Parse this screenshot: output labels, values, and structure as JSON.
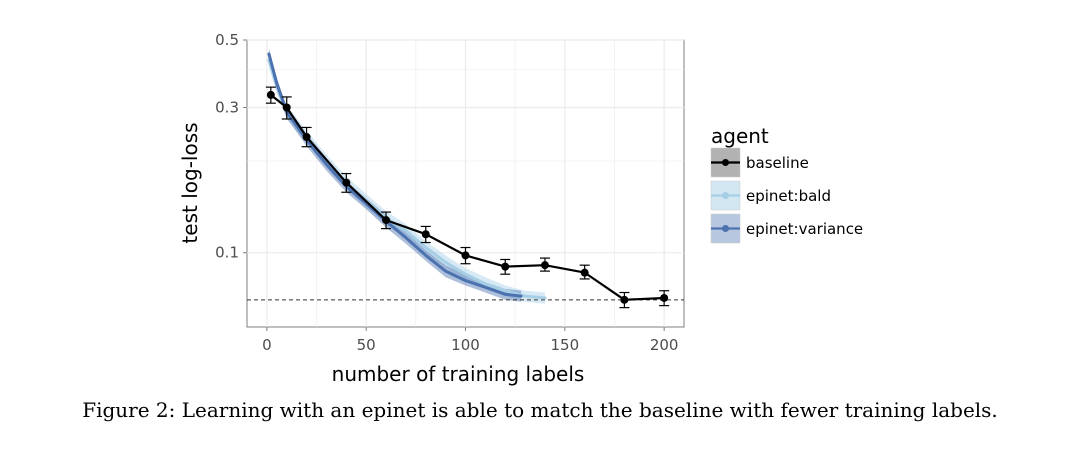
{
  "caption": "Figure 2: Learning with an epinet is able to match the baseline with fewer training labels.",
  "colors": {
    "baseline": "#000000",
    "bald": "#a6cfe6",
    "variance": "#4c72b0",
    "band_baseline": "#7f7f7f",
    "grid": "#ebebeb",
    "reference_line": "#333333"
  },
  "chart_data": {
    "type": "line",
    "xlabel": "number of training labels",
    "ylabel": "test log-loss",
    "xlim": [
      -10,
      210
    ],
    "ylim": [
      0.057,
      0.5
    ],
    "yscale": "log",
    "xticks": [
      0,
      50,
      100,
      150,
      200
    ],
    "yticks": [
      0.1,
      0.3,
      0.5
    ],
    "ytick_labels": [
      "0.1",
      "0.3",
      "0.5"
    ],
    "grid": true,
    "legend": {
      "title": "agent",
      "position": "right"
    },
    "reference_line": {
      "y": 0.07,
      "style": "dashed"
    },
    "series": [
      {
        "name": "baseline",
        "color": "#000000",
        "markers": true,
        "x": [
          2,
          10,
          20,
          40,
          60,
          80,
          100,
          120,
          140,
          160,
          180,
          200
        ],
        "y": [
          0.33,
          0.3,
          0.24,
          0.17,
          0.128,
          0.115,
          0.098,
          0.09,
          0.091,
          0.086,
          0.07,
          0.071
        ],
        "err_lo": [
          0.31,
          0.275,
          0.223,
          0.158,
          0.12,
          0.108,
          0.092,
          0.085,
          0.087,
          0.082,
          0.066,
          0.067
        ],
        "err_hi": [
          0.35,
          0.325,
          0.258,
          0.182,
          0.136,
          0.122,
          0.104,
          0.095,
          0.096,
          0.091,
          0.074,
          0.075
        ]
      },
      {
        "name": "epinet:bald",
        "color": "#a6cfe6",
        "markers": false,
        "x": [
          1,
          5,
          10,
          20,
          30,
          40,
          50,
          60,
          70,
          80,
          90,
          100,
          110,
          120,
          130,
          140
        ],
        "y": [
          0.43,
          0.35,
          0.29,
          0.24,
          0.2,
          0.17,
          0.148,
          0.13,
          0.118,
          0.104,
          0.093,
          0.085,
          0.079,
          0.075,
          0.072,
          0.071
        ],
        "band_lo": [
          0.41,
          0.335,
          0.275,
          0.228,
          0.19,
          0.162,
          0.14,
          0.123,
          0.112,
          0.099,
          0.089,
          0.081,
          0.076,
          0.072,
          0.069,
          0.068
        ],
        "band_hi": [
          0.45,
          0.365,
          0.305,
          0.252,
          0.21,
          0.178,
          0.156,
          0.137,
          0.124,
          0.109,
          0.098,
          0.089,
          0.083,
          0.078,
          0.075,
          0.074
        ]
      },
      {
        "name": "epinet:variance",
        "color": "#4c72b0",
        "markers": false,
        "x": [
          1,
          5,
          10,
          20,
          30,
          40,
          50,
          60,
          70,
          80,
          90,
          100,
          110,
          120,
          128
        ],
        "y": [
          0.45,
          0.36,
          0.29,
          0.235,
          0.195,
          0.165,
          0.145,
          0.127,
          0.112,
          0.098,
          0.087,
          0.081,
          0.077,
          0.073,
          0.072
        ],
        "band_lo": [
          0.43,
          0.345,
          0.277,
          0.224,
          0.186,
          0.158,
          0.139,
          0.121,
          0.107,
          0.094,
          0.083,
          0.078,
          0.074,
          0.07,
          0.069
        ],
        "band_hi": [
          0.47,
          0.375,
          0.303,
          0.246,
          0.204,
          0.172,
          0.151,
          0.133,
          0.117,
          0.102,
          0.091,
          0.085,
          0.08,
          0.076,
          0.075
        ]
      }
    ]
  }
}
